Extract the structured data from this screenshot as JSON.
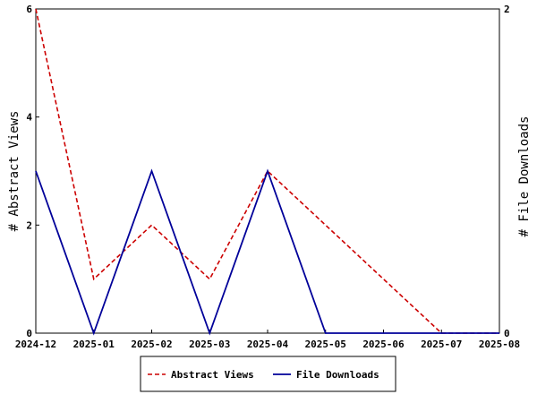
{
  "chart_data": {
    "type": "line",
    "categories": [
      "2024-12",
      "2025-01",
      "2025-02",
      "2025-03",
      "2025-04",
      "2025-05",
      "2025-06",
      "2025-07",
      "2025-08"
    ],
    "series": [
      {
        "name": "Abstract Views",
        "axis": "left",
        "color": "#cc0000",
        "style": "dashed",
        "values": [
          6,
          1,
          2,
          1,
          3,
          2,
          1,
          0,
          0
        ]
      },
      {
        "name": "File Downloads",
        "axis": "right",
        "color": "#000099",
        "style": "solid",
        "values": [
          1,
          0,
          1,
          0,
          1,
          0,
          0,
          0,
          0
        ]
      }
    ],
    "ylabel_left": "# Abstract Views",
    "ylabel_right": "# File Downloads",
    "ylim_left": [
      0,
      6
    ],
    "ylim_right": [
      0,
      2
    ],
    "yticks_left": [
      "0",
      "2",
      "4",
      "6"
    ],
    "yticks_right": [
      "0",
      "2"
    ],
    "grid": false,
    "legend_position": "bottom"
  }
}
